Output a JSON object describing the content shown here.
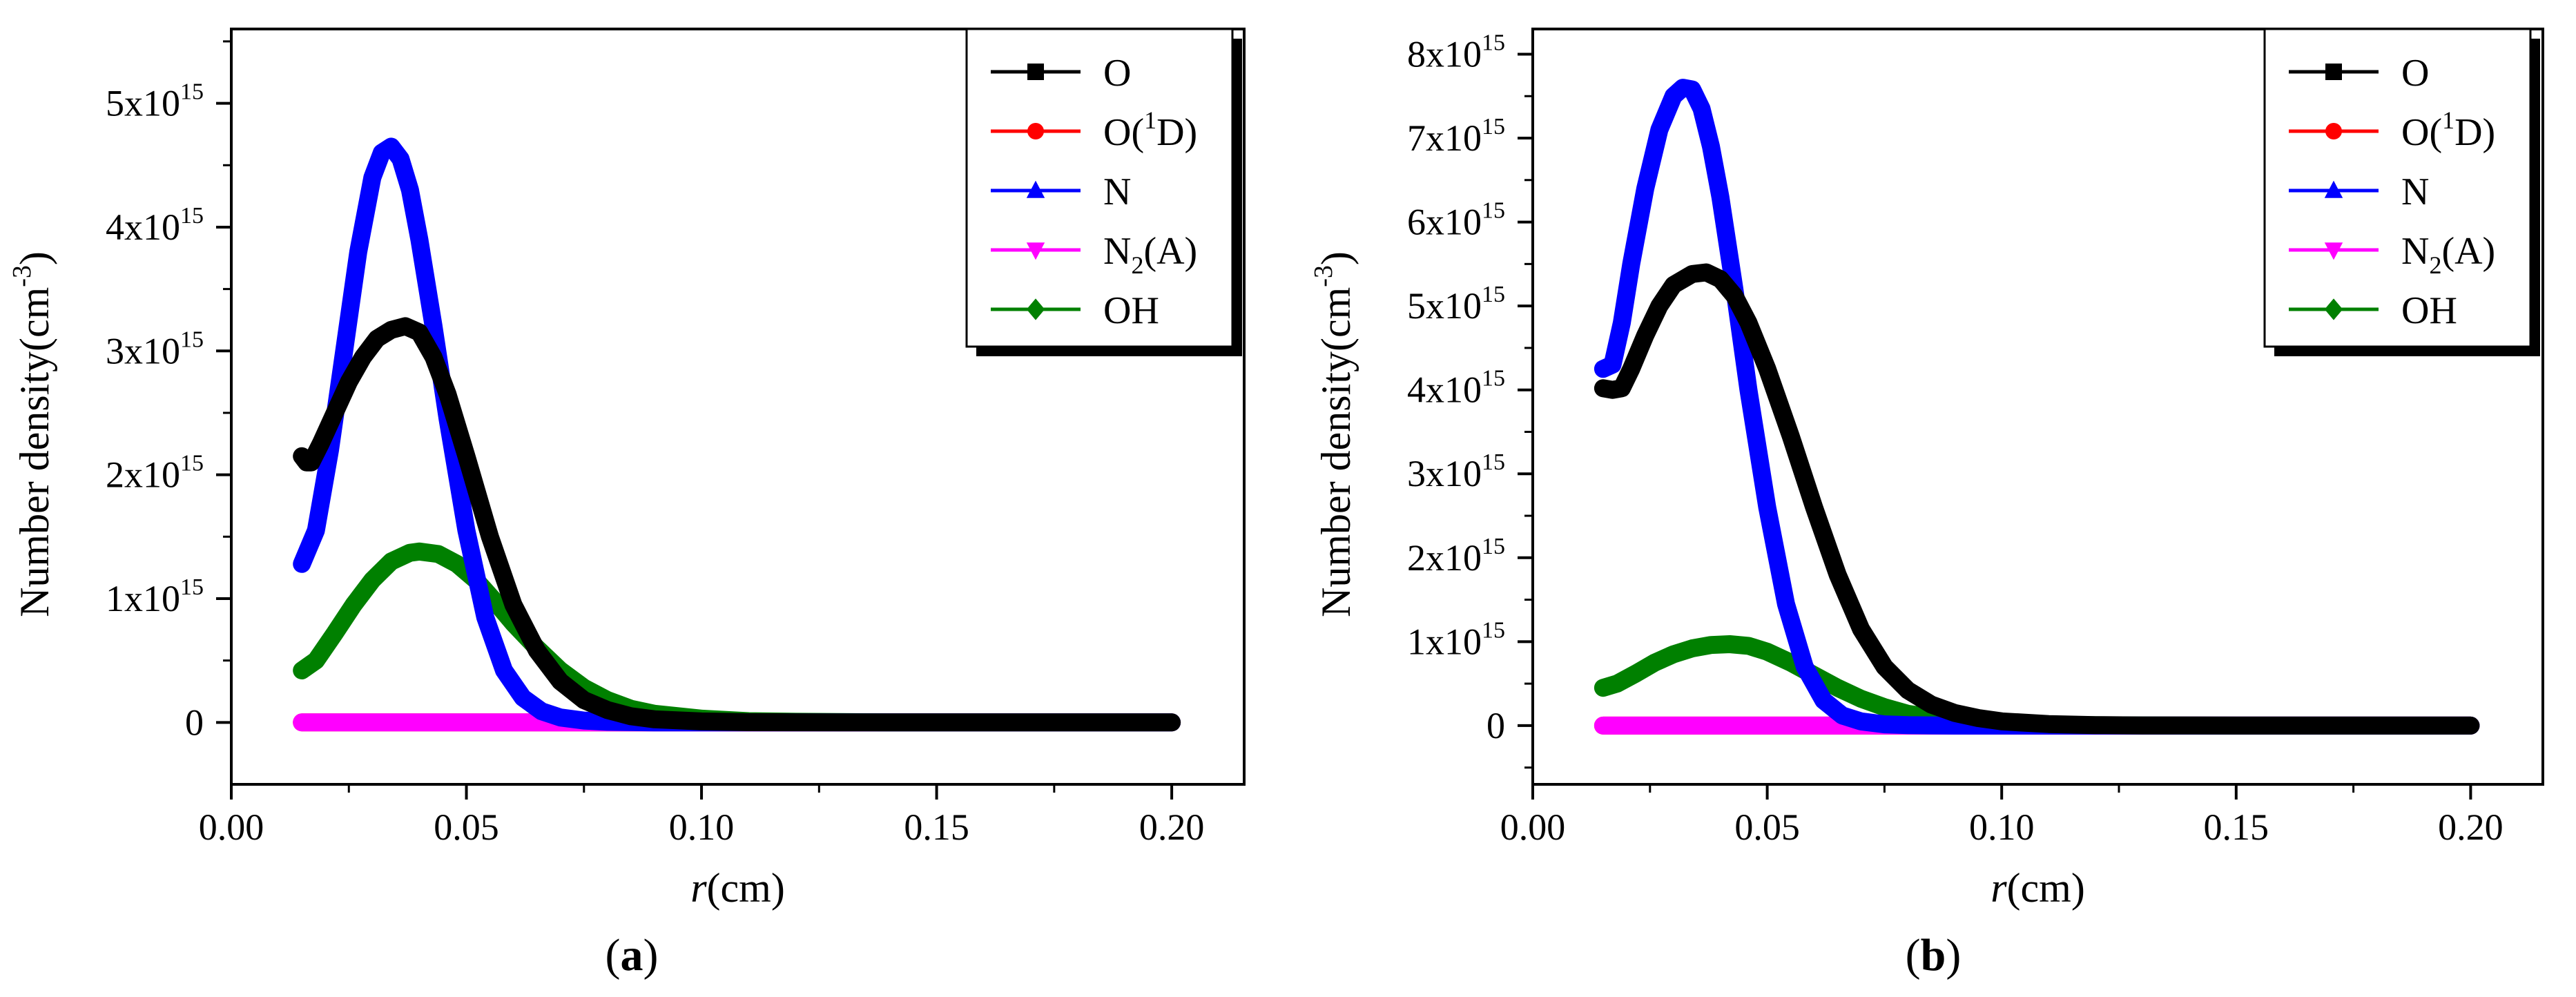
{
  "figure": {
    "panels": [
      {
        "label_open": "(",
        "label_letter": "a",
        "label_close": ")"
      },
      {
        "label_open": "(",
        "label_letter": "b",
        "label_close": ")"
      }
    ]
  },
  "chart_data": [
    {
      "type": "line",
      "panel": "a",
      "xlabel_italic": "r",
      "xlabel": "(cm)",
      "ylabel": "Number density(cm",
      "ylabel_exp": "-3",
      "ylabel_close": ")",
      "xlim": [
        0.0,
        0.2154
      ],
      "ylim": [
        -500000000000000.0,
        5600000000000000.0
      ],
      "x_ticks": [
        0.0,
        0.05,
        0.1,
        0.15,
        0.2
      ],
      "x_tick_labels": [
        "0.00",
        "0.05",
        "0.10",
        "0.15",
        "0.20"
      ],
      "y_ticks": [
        0,
        1000000000000000.0,
        2000000000000000.0,
        3000000000000000.0,
        4000000000000000.0,
        5000000000000000.0
      ],
      "y_tick_labels": [
        {
          "base": "0",
          "exp": ""
        },
        {
          "base": "1x10",
          "exp": "15"
        },
        {
          "base": "2x10",
          "exp": "15"
        },
        {
          "base": "3x10",
          "exp": "15"
        },
        {
          "base": "4x10",
          "exp": "15"
        },
        {
          "base": "5x10",
          "exp": "15"
        }
      ],
      "legend": [
        {
          "name": "O",
          "sub": "",
          "sup": "",
          "tail": "",
          "color": "#000000",
          "marker": "square"
        },
        {
          "name": "O(",
          "sub": "",
          "sup": "1",
          "tail": "D)",
          "color": "#ff0000",
          "marker": "circle"
        },
        {
          "name": "N",
          "sub": "",
          "sup": "",
          "tail": "",
          "color": "#0000ff",
          "marker": "triangle-up"
        },
        {
          "name": "N",
          "sub": "2",
          "sup": "",
          "tail": "(A)",
          "color": "#ff00ff",
          "marker": "triangle-down"
        },
        {
          "name": "OH",
          "sub": "",
          "sup": "",
          "tail": "",
          "color": "#008000",
          "marker": "diamond"
        }
      ],
      "series": [
        {
          "name": "O(1D)",
          "color": "#ff0000",
          "x": [
            0.015,
            0.2
          ],
          "y": [
            0,
            0
          ]
        },
        {
          "name": "N2(A)",
          "color": "#ff00ff",
          "x": [
            0.015,
            0.2
          ],
          "y": [
            0,
            0
          ]
        },
        {
          "name": "OH",
          "color": "#008000",
          "x": [
            0.015,
            0.018,
            0.022,
            0.026,
            0.03,
            0.034,
            0.038,
            0.04,
            0.044,
            0.048,
            0.052,
            0.056,
            0.06,
            0.065,
            0.07,
            0.075,
            0.08,
            0.085,
            0.09,
            0.1,
            0.11,
            0.12,
            0.14,
            0.2
          ],
          "y": [
            420000000000000.0,
            500000000000000.0,
            720000000000000.0,
            950000000000000.0,
            1150000000000000.0,
            1300000000000000.0,
            1370000000000000.0,
            1380000000000000.0,
            1360000000000000.0,
            1280000000000000.0,
            1150000000000000.0,
            980000000000000.0,
            800000000000000.0,
            600000000000000.0,
            420000000000000.0,
            280000000000000.0,
            180000000000000.0,
            110000000000000.0,
            70000000000000.0,
            30000000000000.0,
            10000000000000.0,
            5000000000000.0,
            0.0,
            0.0
          ]
        },
        {
          "name": "N",
          "color": "#0000ff",
          "x": [
            0.015,
            0.018,
            0.021,
            0.024,
            0.027,
            0.03,
            0.032,
            0.034,
            0.036,
            0.038,
            0.04,
            0.043,
            0.046,
            0.05,
            0.054,
            0.058,
            0.062,
            0.066,
            0.07,
            0.075,
            0.08,
            0.09,
            0.1,
            0.12,
            0.2
          ],
          "y": [
            1280000000000000.0,
            1550000000000000.0,
            2200000000000000.0,
            3000000000000000.0,
            3800000000000000.0,
            4400000000000000.0,
            4600000000000000.0,
            4650000000000000.0,
            4550000000000000.0,
            4300000000000000.0,
            3900000000000000.0,
            3200000000000000.0,
            2450000000000000.0,
            1550000000000000.0,
            850000000000000.0,
            420000000000000.0,
            200000000000000.0,
            90000000000000.0,
            40000000000000.0,
            15000000000000.0,
            5000000000000.0,
            0.0,
            0.0,
            0.0,
            0.0
          ]
        },
        {
          "name": "O",
          "color": "#000000",
          "x": [
            0.015,
            0.016,
            0.017,
            0.019,
            0.022,
            0.025,
            0.028,
            0.031,
            0.034,
            0.037,
            0.04,
            0.043,
            0.046,
            0.05,
            0.055,
            0.06,
            0.065,
            0.07,
            0.075,
            0.08,
            0.085,
            0.09,
            0.1,
            0.11,
            0.13,
            0.2
          ],
          "y": [
            2150000000000000.0,
            2100000000000000.0,
            2100000000000000.0,
            2250000000000000.0,
            2500000000000000.0,
            2750000000000000.0,
            2950000000000000.0,
            3100000000000000.0,
            3170000000000000.0,
            3200000000000000.0,
            3150000000000000.0,
            2950000000000000.0,
            2650000000000000.0,
            2150000000000000.0,
            1500000000000000.0,
            950000000000000.0,
            580000000000000.0,
            330000000000000.0,
            180000000000000.0,
            100000000000000.0,
            50000000000000.0,
            25000000000000.0,
            8000000000000.0,
            2000000000000.0,
            0.0,
            0.0
          ]
        }
      ]
    },
    {
      "type": "line",
      "panel": "b",
      "xlabel_italic": "r",
      "xlabel": "(cm)",
      "ylabel": "Number density(cm",
      "ylabel_exp": "-3",
      "ylabel_close": ")",
      "xlim": [
        0.0,
        0.2154
      ],
      "ylim": [
        -700000000000000.0,
        8300000000000000.0
      ],
      "x_ticks": [
        0.0,
        0.05,
        0.1,
        0.15,
        0.2
      ],
      "x_tick_labels": [
        "0.00",
        "0.05",
        "0.10",
        "0.15",
        "0.20"
      ],
      "y_ticks": [
        0,
        1000000000000000.0,
        2000000000000000.0,
        3000000000000000.0,
        4000000000000000.0,
        5000000000000000.0,
        6000000000000000.0,
        7000000000000000.0,
        8000000000000000.0
      ],
      "y_tick_labels": [
        {
          "base": "0",
          "exp": ""
        },
        {
          "base": "1x10",
          "exp": "15"
        },
        {
          "base": "2x10",
          "exp": "15"
        },
        {
          "base": "3x10",
          "exp": "15"
        },
        {
          "base": "4x10",
          "exp": "15"
        },
        {
          "base": "5x10",
          "exp": "15"
        },
        {
          "base": "6x10",
          "exp": "15"
        },
        {
          "base": "7x10",
          "exp": "15"
        },
        {
          "base": "8x10",
          "exp": "15"
        }
      ],
      "legend": [
        {
          "name": "O",
          "sub": "",
          "sup": "",
          "tail": "",
          "color": "#000000",
          "marker": "square"
        },
        {
          "name": "O(",
          "sub": "",
          "sup": "1",
          "tail": "D)",
          "color": "#ff0000",
          "marker": "circle"
        },
        {
          "name": "N",
          "sub": "",
          "sup": "",
          "tail": "",
          "color": "#0000ff",
          "marker": "triangle-up"
        },
        {
          "name": "N",
          "sub": "2",
          "sup": "",
          "tail": "(A)",
          "color": "#ff00ff",
          "marker": "triangle-down"
        },
        {
          "name": "OH",
          "sub": "",
          "sup": "",
          "tail": "",
          "color": "#008000",
          "marker": "diamond"
        }
      ],
      "series": [
        {
          "name": "O(1D)",
          "color": "#ff0000",
          "x": [
            0.015,
            0.2
          ],
          "y": [
            0,
            0
          ]
        },
        {
          "name": "N2(A)",
          "color": "#ff00ff",
          "x": [
            0.015,
            0.2
          ],
          "y": [
            0,
            0
          ]
        },
        {
          "name": "OH",
          "color": "#008000",
          "x": [
            0.015,
            0.018,
            0.022,
            0.026,
            0.03,
            0.034,
            0.038,
            0.042,
            0.046,
            0.05,
            0.055,
            0.06,
            0.065,
            0.07,
            0.075,
            0.08,
            0.09,
            0.1,
            0.11,
            0.12,
            0.14,
            0.2
          ],
          "y": [
            450000000000000.0,
            500000000000000.0,
            620000000000000.0,
            750000000000000.0,
            850000000000000.0,
            920000000000000.0,
            960000000000000.0,
            970000000000000.0,
            950000000000000.0,
            880000000000000.0,
            750000000000000.0,
            600000000000000.0,
            450000000000000.0,
            320000000000000.0,
            220000000000000.0,
            140000000000000.0,
            60000000000000.0,
            25000000000000.0,
            10000000000000.0,
            4000000000000.0,
            0.0,
            0.0
          ]
        },
        {
          "name": "N",
          "color": "#0000ff",
          "x": [
            0.015,
            0.017,
            0.019,
            0.021,
            0.024,
            0.027,
            0.03,
            0.032,
            0.034,
            0.036,
            0.038,
            0.04,
            0.043,
            0.046,
            0.05,
            0.054,
            0.058,
            0.062,
            0.066,
            0.07,
            0.075,
            0.08,
            0.09,
            0.1,
            0.12,
            0.2
          ],
          "y": [
            4250000000000000.0,
            4300000000000000.0,
            4800000000000000.0,
            5500000000000000.0,
            6400000000000000.0,
            7100000000000000.0,
            7500000000000000.0,
            7600000000000000.0,
            7580000000000000.0,
            7350000000000000.0,
            6900000000000000.0,
            6300000000000000.0,
            5200000000000000.0,
            4000000000000000.0,
            2600000000000000.0,
            1450000000000000.0,
            700000000000000.0,
            300000000000000.0,
            120000000000000.0,
            50000000000000.0,
            15000000000000.0,
            5000000000000.0,
            0.0,
            0.0,
            0.0,
            0.0
          ]
        },
        {
          "name": "O",
          "color": "#000000",
          "x": [
            0.015,
            0.017,
            0.019,
            0.021,
            0.024,
            0.027,
            0.03,
            0.034,
            0.037,
            0.04,
            0.043,
            0.046,
            0.05,
            0.055,
            0.06,
            0.065,
            0.07,
            0.075,
            0.08,
            0.085,
            0.09,
            0.095,
            0.1,
            0.11,
            0.12,
            0.13,
            0.15,
            0.2
          ],
          "y": [
            4020000000000000.0,
            4000000000000000.0,
            4020000000000000.0,
            4250000000000000.0,
            4650000000000000.0,
            5000000000000000.0,
            5250000000000000.0,
            5380000000000000.0,
            5400000000000000.0,
            5320000000000000.0,
            5120000000000000.0,
            4800000000000000.0,
            4250000000000000.0,
            3450000000000000.0,
            2600000000000000.0,
            1800000000000000.0,
            1150000000000000.0,
            700000000000000.0,
            420000000000000.0,
            250000000000000.0,
            150000000000000.0,
            90000000000000.0,
            50000000000000.0,
            18000000000000.0,
            6000000000000.0,
            2000000000000.0,
            0.0,
            0.0
          ]
        }
      ]
    }
  ]
}
